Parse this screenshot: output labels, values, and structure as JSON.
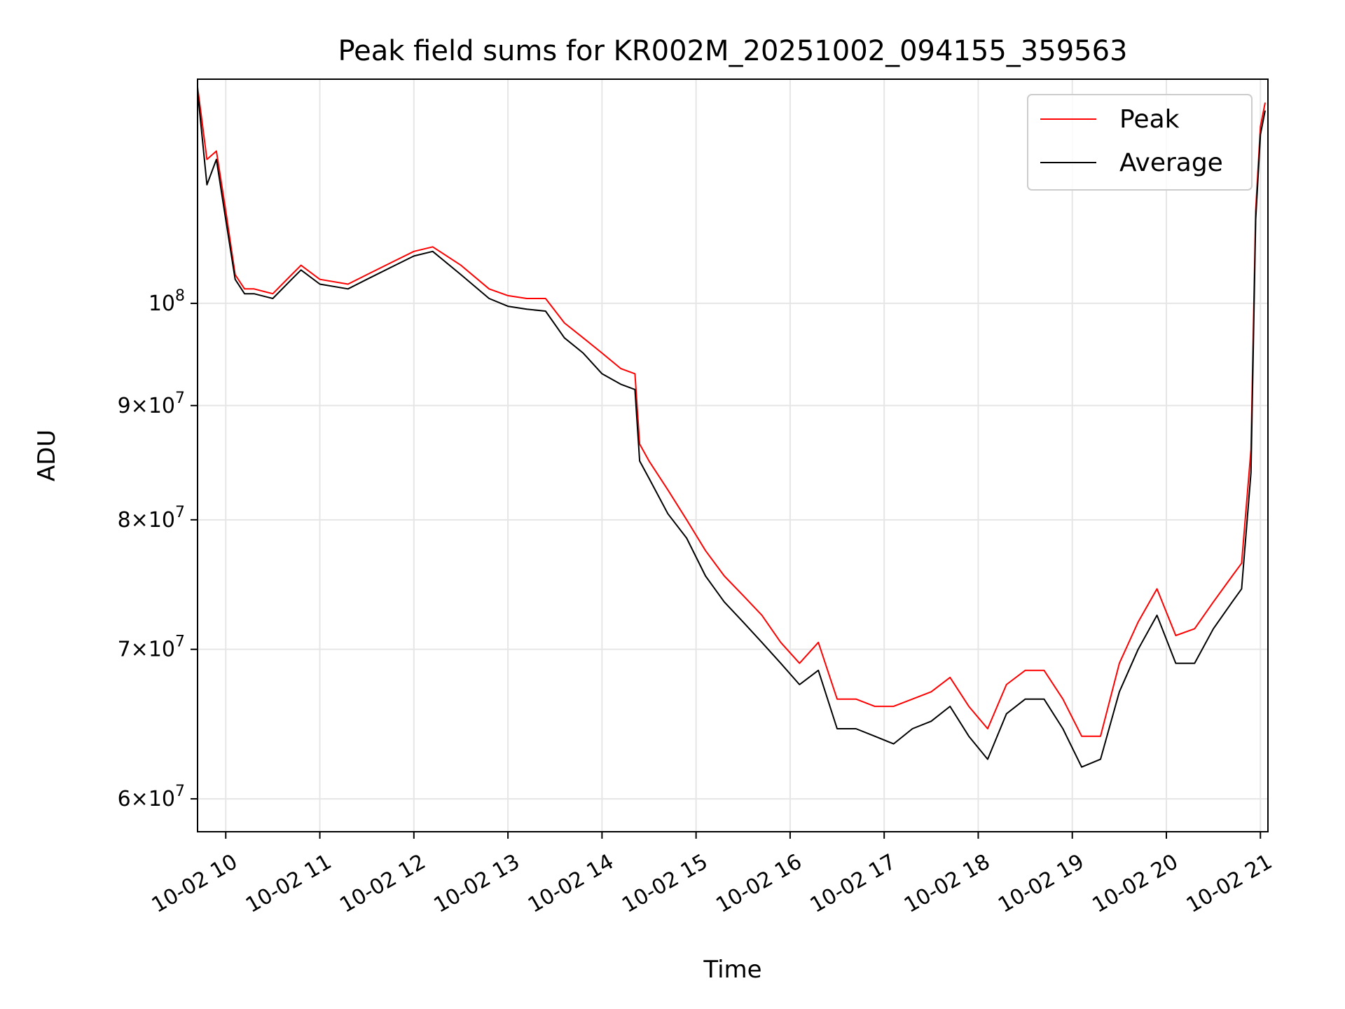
{
  "chart_data": {
    "type": "line",
    "title": "Peak field sums for KR002M_20251002_094155_359563",
    "xlabel": "Time",
    "ylabel": "ADU",
    "yscale": "log",
    "grid": true,
    "legend_position": "top-right",
    "xlim_hours": [
      9.7,
      21.08
    ],
    "ylim": [
      58000000,
      126000000
    ],
    "x_ticks": [
      {
        "hour": 10,
        "label": "10-02 10"
      },
      {
        "hour": 11,
        "label": "10-02 11"
      },
      {
        "hour": 12,
        "label": "10-02 12"
      },
      {
        "hour": 13,
        "label": "10-02 13"
      },
      {
        "hour": 14,
        "label": "10-02 14"
      },
      {
        "hour": 15,
        "label": "10-02 15"
      },
      {
        "hour": 16,
        "label": "10-02 16"
      },
      {
        "hour": 17,
        "label": "10-02 17"
      },
      {
        "hour": 18,
        "label": "10-02 18"
      },
      {
        "hour": 19,
        "label": "10-02 19"
      },
      {
        "hour": 20,
        "label": "10-02 20"
      },
      {
        "hour": 21,
        "label": "10-02 21"
      }
    ],
    "y_ticks": [
      {
        "value": 60000000,
        "mant": "6",
        "exp": "7"
      },
      {
        "value": 70000000,
        "mant": "7",
        "exp": "7"
      },
      {
        "value": 80000000,
        "mant": "8",
        "exp": "7"
      },
      {
        "value": 90000000,
        "mant": "9",
        "exp": "7"
      },
      {
        "value": 100000000,
        "mant": "",
        "exp": "8"
      }
    ],
    "x_hours": [
      9.7,
      9.8,
      9.9,
      10.0,
      10.1,
      10.2,
      10.3,
      10.5,
      10.7,
      10.8,
      11.0,
      11.3,
      11.5,
      11.8,
      12.0,
      12.2,
      12.5,
      12.8,
      13.0,
      13.2,
      13.4,
      13.6,
      13.8,
      14.0,
      14.2,
      14.35,
      14.4,
      14.5,
      14.7,
      14.9,
      15.1,
      15.3,
      15.5,
      15.7,
      15.9,
      16.1,
      16.3,
      16.5,
      16.7,
      16.9,
      17.1,
      17.3,
      17.5,
      17.7,
      17.9,
      18.1,
      18.3,
      18.5,
      18.7,
      18.9,
      19.1,
      19.3,
      19.5,
      19.7,
      19.9,
      20.1,
      20.3,
      20.5,
      20.7,
      20.8,
      20.9,
      20.95,
      21.0,
      21.05
    ],
    "series": [
      {
        "name": "Peak",
        "color": "#ff0000",
        "values": [
          125000000,
          116000000,
          117000000,
          110000000,
          103000000,
          101500000,
          101500000,
          101000000,
          103000000,
          104000000,
          102500000,
          102000000,
          103000000,
          104500000,
          105500000,
          106000000,
          104000000,
          101500000,
          100800000,
          100500000,
          100500000,
          98000000,
          96500000,
          95000000,
          93500000,
          93000000,
          86500000,
          85000000,
          82500000,
          80000000,
          77500000,
          75500000,
          74000000,
          72500000,
          70500000,
          69000000,
          70500000,
          66500000,
          66500000,
          66000000,
          66000000,
          66500000,
          67000000,
          68000000,
          66000000,
          64500000,
          67500000,
          68500000,
          68500000,
          66500000,
          64000000,
          64000000,
          69000000,
          72000000,
          74500000,
          71000000,
          71500000,
          73500000,
          75500000,
          76500000,
          86000000,
          110000000,
          120000000,
          123000000
        ]
      },
      {
        "name": "Average",
        "color": "#000000",
        "values": [
          124500000,
          113000000,
          116000000,
          109000000,
          102500000,
          101000000,
          101000000,
          100500000,
          102500000,
          103500000,
          102000000,
          101500000,
          102500000,
          104000000,
          105000000,
          105500000,
          103000000,
          100500000,
          99700000,
          99400000,
          99200000,
          96500000,
          95000000,
          93000000,
          92000000,
          91500000,
          85000000,
          83500000,
          80500000,
          78500000,
          75500000,
          73500000,
          72000000,
          70500000,
          69000000,
          67500000,
          68500000,
          64500000,
          64500000,
          64000000,
          63500000,
          64500000,
          65000000,
          66000000,
          64000000,
          62500000,
          65500000,
          66500000,
          66500000,
          64500000,
          62000000,
          62500000,
          67000000,
          70000000,
          72500000,
          69000000,
          69000000,
          71500000,
          73500000,
          74500000,
          84000000,
          109000000,
          119000000,
          122000000
        ]
      }
    ],
    "legend": [
      {
        "label": "Peak",
        "color": "#ff0000"
      },
      {
        "label": "Average",
        "color": "#000000"
      }
    ]
  }
}
